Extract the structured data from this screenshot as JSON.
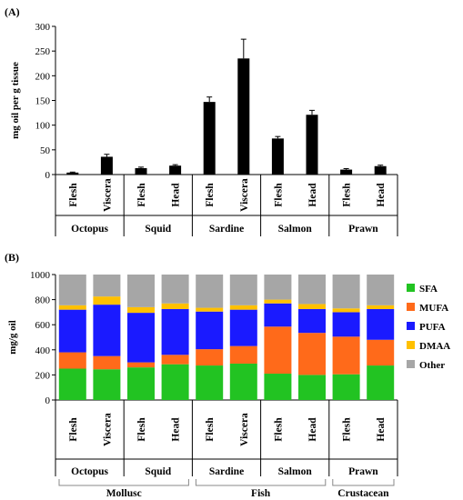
{
  "colors": {
    "bar": "#000000",
    "SFA": "#22c322",
    "MUFA": "#ff6a1a",
    "PUFA": "#1a1aff",
    "DMAA": "#ffc000",
    "Other": "#a6a6a6"
  },
  "chart_data": [
    {
      "type": "bar",
      "panel_label": "(A)",
      "ylabel": "mg oil per g tissue",
      "ylim": [
        0,
        300
      ],
      "yticks": [
        0,
        50,
        100,
        150,
        200,
        250,
        300
      ],
      "categories": [
        "Flesh",
        "Viscera",
        "Flesh",
        "Head",
        "Flesh",
        "Viscera",
        "Flesh",
        "Head",
        "Flesh",
        "Head"
      ],
      "values": [
        4,
        36,
        13,
        18,
        147,
        235,
        73,
        121,
        10,
        17
      ],
      "errors": [
        1,
        5,
        2,
        2,
        10,
        39,
        4,
        9,
        2,
        2
      ],
      "groups": [
        {
          "label": "Octopus",
          "start": 0,
          "end": 1
        },
        {
          "label": "Squid",
          "start": 2,
          "end": 3
        },
        {
          "label": "Sardine",
          "start": 4,
          "end": 5
        },
        {
          "label": "Salmon",
          "start": 6,
          "end": 7
        },
        {
          "label": "Prawn",
          "start": 8,
          "end": 9
        }
      ],
      "grid": false
    },
    {
      "type": "stacked-bar",
      "panel_label": "(B)",
      "ylabel": "mg/g oil",
      "ylim": [
        0,
        1000
      ],
      "yticks": [
        0,
        200,
        400,
        600,
        800,
        1000
      ],
      "categories": [
        "Flesh",
        "Viscera",
        "Flesh",
        "Head",
        "Flesh",
        "Viscera",
        "Flesh",
        "Head",
        "Flesh",
        "Head"
      ],
      "series": [
        {
          "name": "SFA",
          "values": [
            250,
            245,
            260,
            285,
            275,
            290,
            210,
            200,
            205,
            275
          ]
        },
        {
          "name": "MUFA",
          "values": [
            130,
            105,
            40,
            75,
            130,
            140,
            375,
            335,
            300,
            205
          ]
        },
        {
          "name": "PUFA",
          "values": [
            340,
            410,
            395,
            365,
            300,
            290,
            185,
            190,
            195,
            245
          ]
        },
        {
          "name": "DMAA",
          "values": [
            35,
            65,
            45,
            45,
            30,
            35,
            30,
            40,
            30,
            30
          ]
        },
        {
          "name": "Other",
          "values": [
            245,
            175,
            260,
            230,
            265,
            245,
            200,
            235,
            270,
            245
          ]
        }
      ],
      "groups": [
        {
          "label": "Octopus",
          "start": 0,
          "end": 1
        },
        {
          "label": "Squid",
          "start": 2,
          "end": 3
        },
        {
          "label": "Sardine",
          "start": 4,
          "end": 5
        },
        {
          "label": "Salmon",
          "start": 6,
          "end": 7
        },
        {
          "label": "Prawn",
          "start": 8,
          "end": 9
        }
      ],
      "supergroups": [
        {
          "label": "Mollusc",
          "start": 0,
          "end": 3
        },
        {
          "label": "Fish",
          "start": 4,
          "end": 7
        },
        {
          "label": "Crustacean",
          "start": 8,
          "end": 9
        }
      ],
      "legend": [
        "SFA",
        "MUFA",
        "PUFA",
        "DMAA",
        "Other"
      ],
      "legend_position": "right",
      "grid": false
    }
  ]
}
